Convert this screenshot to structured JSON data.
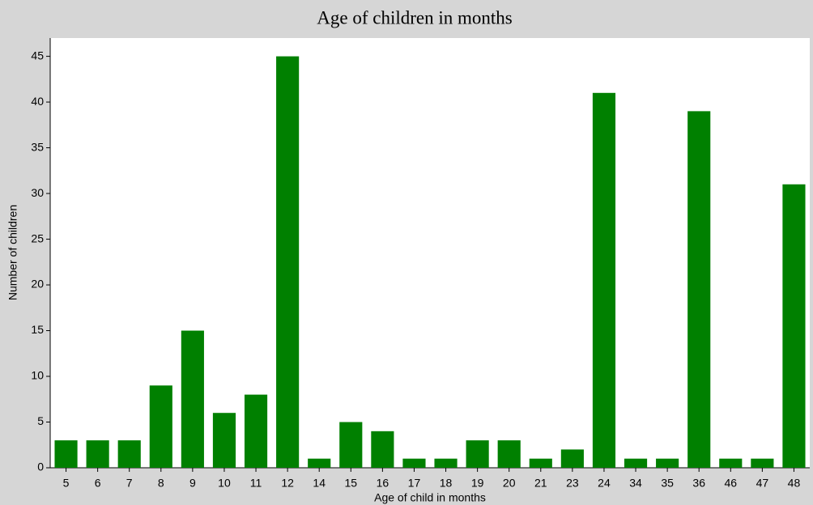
{
  "chart_data": {
    "type": "bar",
    "title": "Age of children in months",
    "x_label": "Age of child in months",
    "y_label": "Number of children",
    "categories": [
      "5",
      "6",
      "7",
      "8",
      "9",
      "10",
      "11",
      "12",
      "14",
      "15",
      "16",
      "17",
      "18",
      "19",
      "20",
      "21",
      "23",
      "24",
      "34",
      "35",
      "36",
      "46",
      "47",
      "48"
    ],
    "values": [
      3,
      3,
      3,
      9,
      15,
      6,
      8,
      45,
      1,
      5,
      4,
      1,
      1,
      3,
      3,
      1,
      2,
      41,
      1,
      1,
      39,
      1,
      1,
      31
    ],
    "color": "#008000",
    "ylim": [
      0,
      47
    ],
    "yticks": [
      0,
      5,
      10,
      15,
      20,
      25,
      30,
      35,
      40,
      45
    ],
    "grid": false
  }
}
